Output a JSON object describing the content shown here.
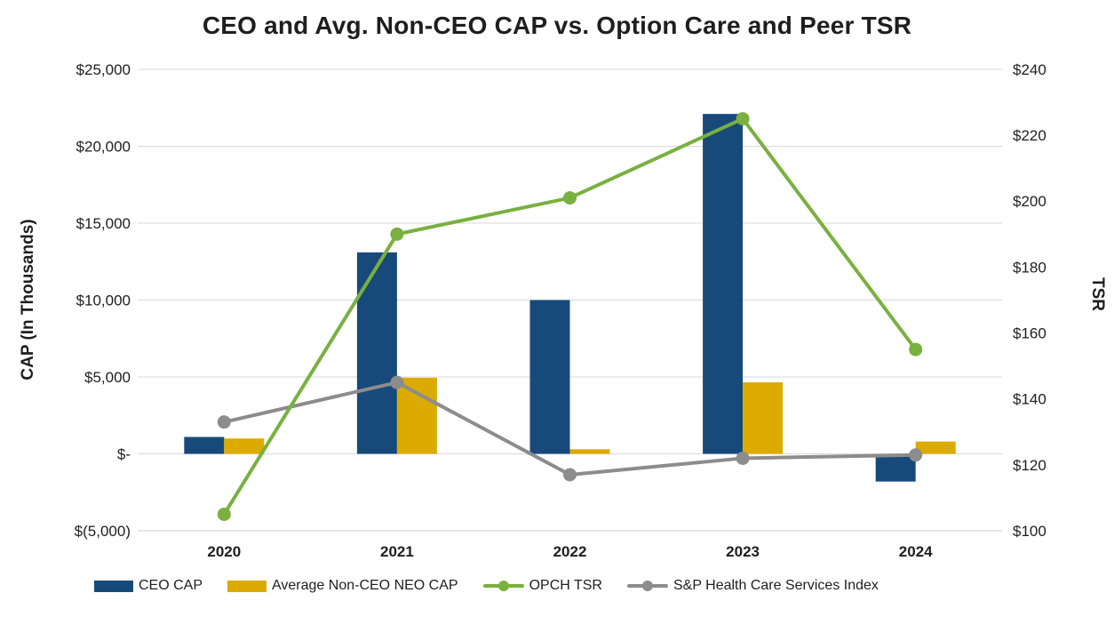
{
  "chart_data": {
    "type": "combo_bar_line",
    "title": "CEO and Avg. Non-CEO CAP vs. Option Care and Peer TSR",
    "categories": [
      "2020",
      "2021",
      "2022",
      "2023",
      "2024"
    ],
    "series": [
      {
        "name": "CEO CAP",
        "type": "bar",
        "axis": "left",
        "color": "#174A7B",
        "values": [
          1100,
          13100,
          10000,
          22100,
          -1800
        ]
      },
      {
        "name": "Average Non-CEO NEO CAP",
        "type": "bar",
        "axis": "left",
        "color": "#DCAB00",
        "values": [
          1000,
          4950,
          300,
          4650,
          800
        ]
      },
      {
        "name": "OPCH TSR",
        "type": "line",
        "axis": "right",
        "color": "#79B03F",
        "values": [
          105,
          190,
          201,
          225,
          155
        ]
      },
      {
        "name": "S&P Health Care Services Index",
        "type": "line",
        "axis": "right",
        "color": "#8C8C8C",
        "values": [
          133,
          145,
          117,
          122,
          123
        ]
      }
    ],
    "left_axis": {
      "label": "CAP (In Thousands)",
      "min": -5000,
      "max": 25000,
      "step": 5000,
      "tick_labels": [
        "$25,000",
        "$20,000",
        "$15,000",
        "$10,000",
        "$5,000",
        "$-",
        "$(5,000)"
      ]
    },
    "right_axis": {
      "label": "TSR",
      "min": 100,
      "max": 240,
      "step": 20,
      "tick_labels": [
        "$240",
        "$220",
        "$200",
        "$180",
        "$160",
        "$140",
        "$120",
        "$100"
      ]
    },
    "grid": true,
    "gridline_color": "#D9D9D9",
    "bottom_line_color": "#CFCFCF",
    "legend_position": "bottom"
  }
}
